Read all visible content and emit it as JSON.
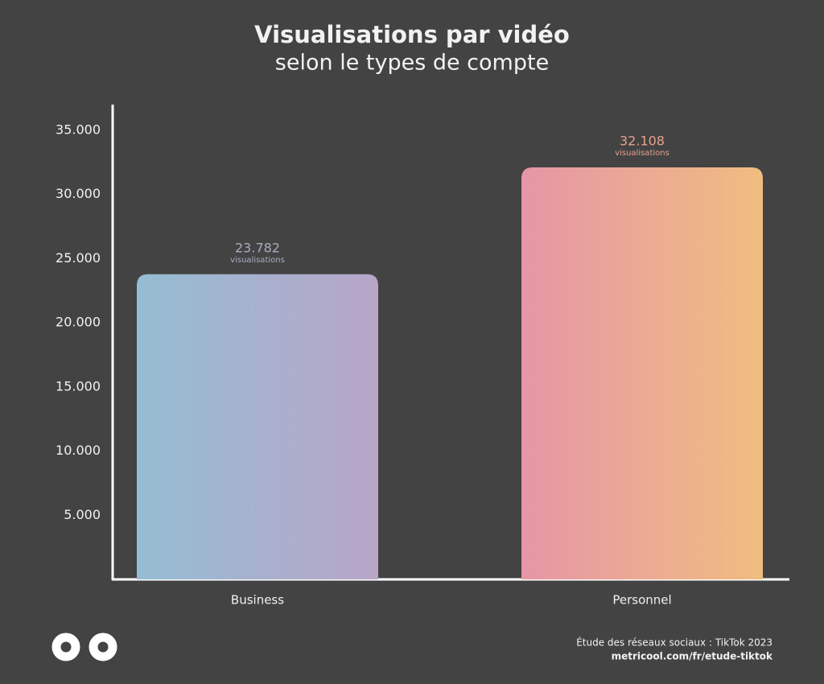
{
  "chart_data": {
    "type": "bar",
    "title": "Visualisations par vidéo",
    "subtitle": "selon le types de compte",
    "categories": [
      "Business",
      "Personnel"
    ],
    "values": [
      23782,
      32108
    ],
    "value_labels": [
      "23.782",
      "32.108"
    ],
    "value_label_caption": "visualisations",
    "colors": [
      [
        "#95bdd3",
        "#b8a5c8"
      ],
      [
        "#e696a6",
        "#f0bd80"
      ]
    ],
    "label_colors": [
      "#a9aec0",
      "#e8a08c"
    ],
    "ylim": [
      0,
      37000
    ],
    "yticks": [
      {
        "value": 5000,
        "label": "5.000"
      },
      {
        "value": 10000,
        "label": "10.000"
      },
      {
        "value": 15000,
        "label": "15.000"
      },
      {
        "value": 20000,
        "label": "20.000"
      },
      {
        "value": 25000,
        "label": "25.000"
      },
      {
        "value": 30000,
        "label": "30.000"
      },
      {
        "value": 35000,
        "label": "35.000"
      }
    ],
    "grid": false,
    "source": "Étude des réseaux sociaux : TikTok 2023",
    "url": "metricool.com/fr/etude-tiktok"
  }
}
